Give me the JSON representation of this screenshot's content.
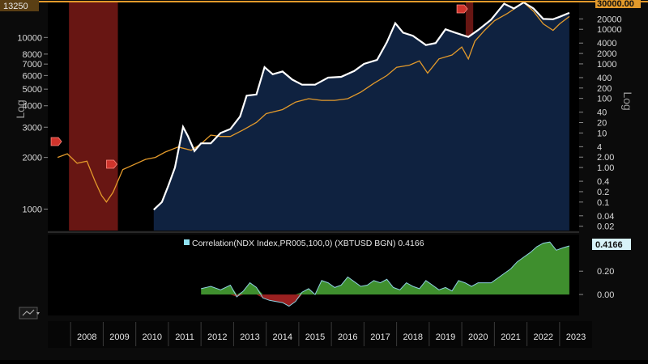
{
  "colors": {
    "background": "#000000",
    "panel_fill": "#0f2240",
    "ndx_line": "#e39a2b",
    "btc_line": "#ffffff",
    "recession": "#7a1a16",
    "corr_positive": "#3f8f2e",
    "corr_negative": "#9a2020",
    "corr_line": "#8fd0e0",
    "last_value_tag": "#e39a2b",
    "corr_tag": "#9ad9ea"
  },
  "upper_panel": {
    "left_axis_title": "Log",
    "right_axis_title": "Log",
    "left_ticks": [
      "10000",
      "8000",
      "7000",
      "6000",
      "5000",
      "4000",
      "3000",
      "2000",
      "1000"
    ],
    "right_ticks": [
      "20000",
      "10000",
      "4000",
      "2000",
      "1000",
      "400",
      "200",
      "100",
      "40",
      "20",
      "10",
      "4",
      "2.00",
      "1.00",
      "0.4",
      "0.2",
      "0.1",
      "0.04",
      "0.02"
    ],
    "last_value_left": "13250",
    "last_value_right": "30000.00",
    "marker_icons": [
      "flag-marker-icon",
      "flag-marker-icon",
      "flag-marker-icon"
    ]
  },
  "lower_panel": {
    "legend_text": "Correlation(NDX Index,PR005,100,0) (XBTUSD BGN) 0.4166",
    "last_value": "0.4166",
    "right_ticks": [
      "0.20",
      "0.00"
    ],
    "chart_menu_icon": "chart-menu-icon"
  },
  "x_axis": {
    "years": [
      "2008",
      "2009",
      "2010",
      "2011",
      "2012",
      "2013",
      "2014",
      "2015",
      "2016",
      "2017",
      "2018",
      "2019",
      "2020",
      "2021",
      "2022",
      "2023"
    ]
  },
  "chart_data": [
    {
      "type": "line",
      "scale": "log",
      "series": [
        {
          "name": "NDX Index",
          "axis": "left",
          "x": [
            2007.6,
            2007.9,
            2008.2,
            2008.5,
            2008.75,
            2008.95,
            2009.1,
            2009.3,
            2009.6,
            2009.9,
            2010.3,
            2010.6,
            2010.9,
            2011.3,
            2011.7,
            2012.0,
            2012.3,
            2012.6,
            2012.9,
            2013.3,
            2013.7,
            2014.0,
            2014.5,
            2014.9,
            2015.3,
            2015.7,
            2016.1,
            2016.5,
            2016.9,
            2017.3,
            2017.7,
            2018.0,
            2018.4,
            2018.7,
            2018.95,
            2019.3,
            2019.7,
            2020.0,
            2020.2,
            2020.4,
            2020.7,
            2021.0,
            2021.4,
            2021.9,
            2022.2,
            2022.5,
            2022.8,
            2023.0,
            2023.3
          ],
          "values": [
            2000,
            2100,
            1850,
            1900,
            1450,
            1200,
            1100,
            1250,
            1700,
            1800,
            1950,
            2000,
            2150,
            2300,
            2200,
            2400,
            2700,
            2650,
            2650,
            2900,
            3200,
            3600,
            3800,
            4200,
            4400,
            4300,
            4300,
            4400,
            4800,
            5400,
            6000,
            6700,
            6900,
            7300,
            6200,
            7500,
            7900,
            8800,
            7500,
            9500,
            11000,
            12500,
            13800,
            16400,
            14200,
            12000,
            11000,
            12000,
            13250
          ]
        },
        {
          "name": "XBTUSD BGN",
          "axis": "right",
          "x": [
            2010.55,
            2010.8,
            2011.0,
            2011.2,
            2011.45,
            2011.6,
            2011.8,
            2012.0,
            2012.3,
            2012.6,
            2012.9,
            2013.2,
            2013.4,
            2013.7,
            2013.95,
            2014.2,
            2014.5,
            2014.8,
            2015.1,
            2015.5,
            2015.9,
            2016.3,
            2016.7,
            2017.0,
            2017.4,
            2017.7,
            2017.96,
            2018.2,
            2018.5,
            2018.9,
            2019.2,
            2019.5,
            2019.8,
            2020.2,
            2020.5,
            2020.9,
            2021.3,
            2021.6,
            2021.9,
            2022.2,
            2022.5,
            2022.8,
            2023.0,
            2023.3
          ],
          "values": [
            0.06,
            0.1,
            0.3,
            1.0,
            15,
            8,
            3,
            5,
            5,
            10,
            13,
            30,
            120,
            130,
            800,
            500,
            600,
            350,
            250,
            250,
            400,
            420,
            620,
            1000,
            1300,
            4200,
            15000,
            8000,
            6500,
            3500,
            4000,
            10000,
            8000,
            6000,
            9500,
            19000,
            55000,
            40000,
            60000,
            40000,
            20000,
            19500,
            23000,
            30000
          ]
        }
      ],
      "recession_shading": [
        [
          2007.95,
          2009.45
        ],
        [
          2020.12,
          2020.35
        ]
      ],
      "left_ylim": [
        750,
        16000
      ],
      "right_ylim": [
        0.015,
        60000
      ],
      "xlim": [
        2007.3,
        2023.6
      ],
      "left_axis_label": "Log",
      "right_axis_label": "Log"
    },
    {
      "type": "area",
      "series": [
        {
          "name": "Correlation(NDX Index,PR005,100,0) (XBTUSD BGN)",
          "x": [
            2012.0,
            2012.3,
            2012.6,
            2012.9,
            2013.1,
            2013.3,
            2013.5,
            2013.7,
            2013.9,
            2014.1,
            2014.3,
            2014.5,
            2014.7,
            2014.9,
            2015.1,
            2015.3,
            2015.5,
            2015.7,
            2015.9,
            2016.1,
            2016.3,
            2016.5,
            2016.7,
            2016.9,
            2017.1,
            2017.3,
            2017.5,
            2017.7,
            2017.9,
            2018.1,
            2018.3,
            2018.5,
            2018.7,
            2018.9,
            2019.1,
            2019.3,
            2019.5,
            2019.7,
            2019.9,
            2020.1,
            2020.3,
            2020.5,
            2020.7,
            2020.9,
            2021.1,
            2021.3,
            2021.5,
            2021.7,
            2021.9,
            2022.1,
            2022.3,
            2022.5,
            2022.7,
            2022.9,
            2023.1,
            2023.3
          ],
          "values": [
            0.05,
            0.07,
            0.04,
            0.08,
            -0.02,
            0.03,
            0.1,
            0.06,
            -0.03,
            -0.05,
            -0.06,
            -0.07,
            -0.1,
            -0.06,
            0.02,
            0.05,
            0.0,
            0.12,
            0.1,
            0.06,
            0.08,
            0.15,
            0.11,
            0.07,
            0.08,
            0.12,
            0.1,
            0.13,
            0.06,
            0.04,
            0.1,
            0.07,
            0.05,
            0.12,
            0.08,
            0.04,
            0.06,
            0.03,
            0.12,
            0.1,
            0.07,
            0.1,
            0.1,
            0.1,
            0.14,
            0.18,
            0.22,
            0.28,
            0.32,
            0.36,
            0.41,
            0.44,
            0.45,
            0.38,
            0.4,
            0.4166
          ]
        }
      ],
      "ylim": [
        -0.18,
        0.5
      ],
      "xlim": [
        2007.3,
        2023.6
      ],
      "ticks": [
        0.0,
        0.2
      ],
      "last_value": 0.4166
    }
  ]
}
